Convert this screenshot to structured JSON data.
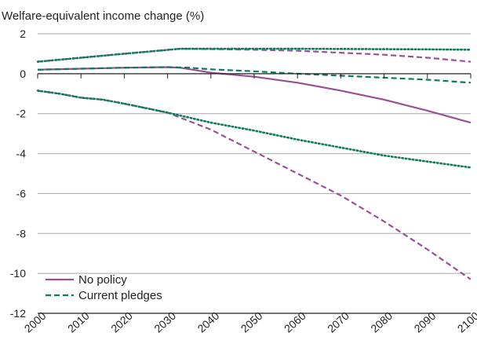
{
  "chart_data": {
    "type": "line",
    "title": "",
    "ylabel": "Welfare-equivalent income change (%)",
    "xlabel": "",
    "xlim": [
      2000,
      2100
    ],
    "ylim": [
      -12,
      2
    ],
    "xticks": [
      2000,
      2010,
      2020,
      2030,
      2040,
      2050,
      2060,
      2070,
      2080,
      2090,
      2100
    ],
    "yticks": [
      2,
      0,
      -2,
      -4,
      -6,
      -8,
      -10,
      -12
    ],
    "grid": "horizontal",
    "legend": "bottom-left",
    "colors": {
      "purple": "#9b4f96",
      "green": "#0f7a5e",
      "axis": "#231f20",
      "grid": "#a7a9ac"
    },
    "series": [
      {
        "name": "No policy",
        "style": "solid",
        "color": "#9b4f96",
        "x": [
          2000,
          2010,
          2020,
          2030,
          2033,
          2040,
          2050,
          2060,
          2070,
          2080,
          2090,
          2100
        ],
        "y": [
          0.2,
          0.25,
          0.3,
          0.33,
          0.3,
          0.05,
          -0.15,
          -0.45,
          -0.85,
          -1.3,
          -1.85,
          -2.45
        ]
      },
      {
        "style": "dashed",
        "color": "#9b4f96",
        "x": [
          2000,
          2010,
          2020,
          2033,
          2040,
          2050,
          2060,
          2070,
          2080,
          2090,
          2100
        ],
        "y": [
          0.6,
          0.8,
          1.0,
          1.25,
          1.23,
          1.2,
          1.15,
          1.05,
          0.95,
          0.8,
          0.6
        ]
      },
      {
        "style": "dashed",
        "color": "#9b4f96",
        "x": [
          2000,
          2005,
          2010,
          2015,
          2020,
          2030,
          2040,
          2050,
          2060,
          2070,
          2080,
          2090,
          2100
        ],
        "y": [
          -0.85,
          -1.0,
          -1.2,
          -1.3,
          -1.5,
          -1.95,
          -2.8,
          -3.9,
          -5.0,
          -6.1,
          -7.4,
          -8.8,
          -10.3
        ]
      },
      {
        "name": "Current pledges",
        "style": "dashed",
        "color": "#0f7a5e",
        "x": [
          2000,
          2010,
          2020,
          2030,
          2035,
          2040,
          2050,
          2060,
          2070,
          2080,
          2090,
          2100
        ],
        "y": [
          0.2,
          0.25,
          0.3,
          0.33,
          0.3,
          0.22,
          0.12,
          0.0,
          -0.1,
          -0.2,
          -0.3,
          -0.45
        ]
      },
      {
        "style": "dotted",
        "color": "#0f7a5e",
        "x": [
          2000,
          2010,
          2020,
          2033,
          2040,
          2050,
          2060,
          2070,
          2080,
          2090,
          2100
        ],
        "y": [
          0.6,
          0.8,
          1.0,
          1.25,
          1.25,
          1.25,
          1.25,
          1.24,
          1.23,
          1.22,
          1.2
        ]
      },
      {
        "style": "dotted",
        "color": "#0f7a5e",
        "x": [
          2000,
          2005,
          2010,
          2015,
          2020,
          2030,
          2040,
          2050,
          2060,
          2070,
          2080,
          2090,
          2100
        ],
        "y": [
          -0.85,
          -1.0,
          -1.2,
          -1.3,
          -1.5,
          -1.95,
          -2.45,
          -2.85,
          -3.3,
          -3.7,
          -4.1,
          -4.4,
          -4.7
        ]
      }
    ],
    "legend_entries": [
      {
        "label": "No policy",
        "style": "solid",
        "color": "#9b4f96"
      },
      {
        "label": "Current pledges",
        "style": "dashed",
        "color": "#0f7a5e"
      }
    ]
  }
}
